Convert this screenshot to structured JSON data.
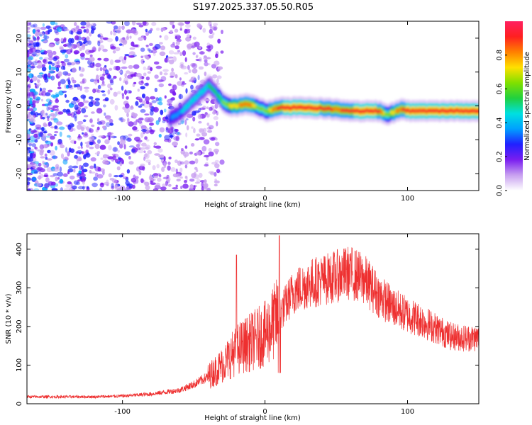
{
  "title": "S197.2025.337.05.50.R05",
  "chart_data": [
    {
      "type": "heatmap",
      "name": "spectrogram",
      "xlabel": "Height of straight line (km)",
      "ylabel": "Frequency (Hz)",
      "xlim": [
        -167,
        150
      ],
      "ylim": [
        -25,
        25
      ],
      "xticks": [
        -100,
        0,
        100
      ],
      "yticks": [
        -20,
        -10,
        0,
        10,
        20
      ],
      "colorbar": {
        "label": "Normalized spectral amplitude",
        "range": [
          0,
          1
        ],
        "ticks": [
          0.0,
          0.2,
          0.4,
          0.6,
          0.8
        ],
        "colormap": [
          "#ffffff",
          "#c8a0f0",
          "#7a1ef0",
          "#2020ff",
          "#00a0ff",
          "#00e0e0",
          "#20d040",
          "#80e000",
          "#ffe000",
          "#ff8000",
          "#ff2020",
          "#ff2060"
        ]
      },
      "ridge": {
        "x": [
          -68,
          -60,
          -55,
          -50,
          -45,
          -40,
          -35,
          -30,
          -25,
          -20,
          -15,
          -10,
          -5,
          0,
          5,
          10,
          20,
          30,
          40,
          50,
          60,
          70,
          80,
          85,
          90,
          95,
          100,
          110,
          120,
          130,
          140,
          150
        ],
        "freq": [
          -4,
          -2,
          0,
          2,
          4,
          6,
          4,
          1,
          0,
          0,
          0.5,
          0.2,
          -0.5,
          -1.5,
          -1,
          -0.5,
          -0.5,
          -0.5,
          -0.8,
          -1,
          -1.5,
          -1.5,
          -1.5,
          -2.5,
          -2,
          -1,
          -1.5,
          -1.5,
          -1.5,
          -1.5,
          -1.5,
          -1.5
        ],
        "amplitude": [
          0.3,
          0.4,
          0.45,
          0.45,
          0.45,
          0.5,
          0.5,
          0.6,
          0.7,
          0.75,
          0.85,
          0.8,
          0.6,
          0.6,
          0.8,
          0.9,
          0.95,
          0.95,
          0.9,
          0.85,
          0.9,
          0.95,
          0.9,
          0.6,
          0.75,
          0.85,
          0.95,
          0.95,
          0.95,
          0.95,
          0.95,
          0.95
        ]
      },
      "noise_region_x": [
        -167,
        -30
      ]
    },
    {
      "type": "line",
      "name": "snr",
      "xlabel": "Height of straight line (km)",
      "ylabel": "SNR (10 * v/v)",
      "xlim": [
        -167,
        150
      ],
      "ylim": [
        0,
        440
      ],
      "xticks": [
        -100,
        0,
        100
      ],
      "yticks": [
        0,
        100,
        200,
        300,
        400
      ],
      "color": "#ee3030",
      "envelope": {
        "x": [
          -167,
          -120,
          -100,
          -80,
          -60,
          -50,
          -40,
          -30,
          -25,
          -20,
          -10,
          0,
          10,
          20,
          30,
          40,
          50,
          60,
          70,
          80,
          90,
          100,
          110,
          120,
          130,
          140,
          150
        ],
        "y": [
          18,
          18,
          20,
          25,
          35,
          50,
          70,
          100,
          120,
          140,
          160,
          180,
          230,
          290,
          310,
          320,
          330,
          340,
          320,
          280,
          250,
          230,
          215,
          195,
          175,
          170,
          170
        ]
      },
      "spikes": [
        {
          "x": -20,
          "y": 385
        },
        {
          "x": 10,
          "y": 435
        },
        {
          "x": 45,
          "y": 375
        },
        {
          "x": 60,
          "y": 370
        }
      ]
    }
  ]
}
